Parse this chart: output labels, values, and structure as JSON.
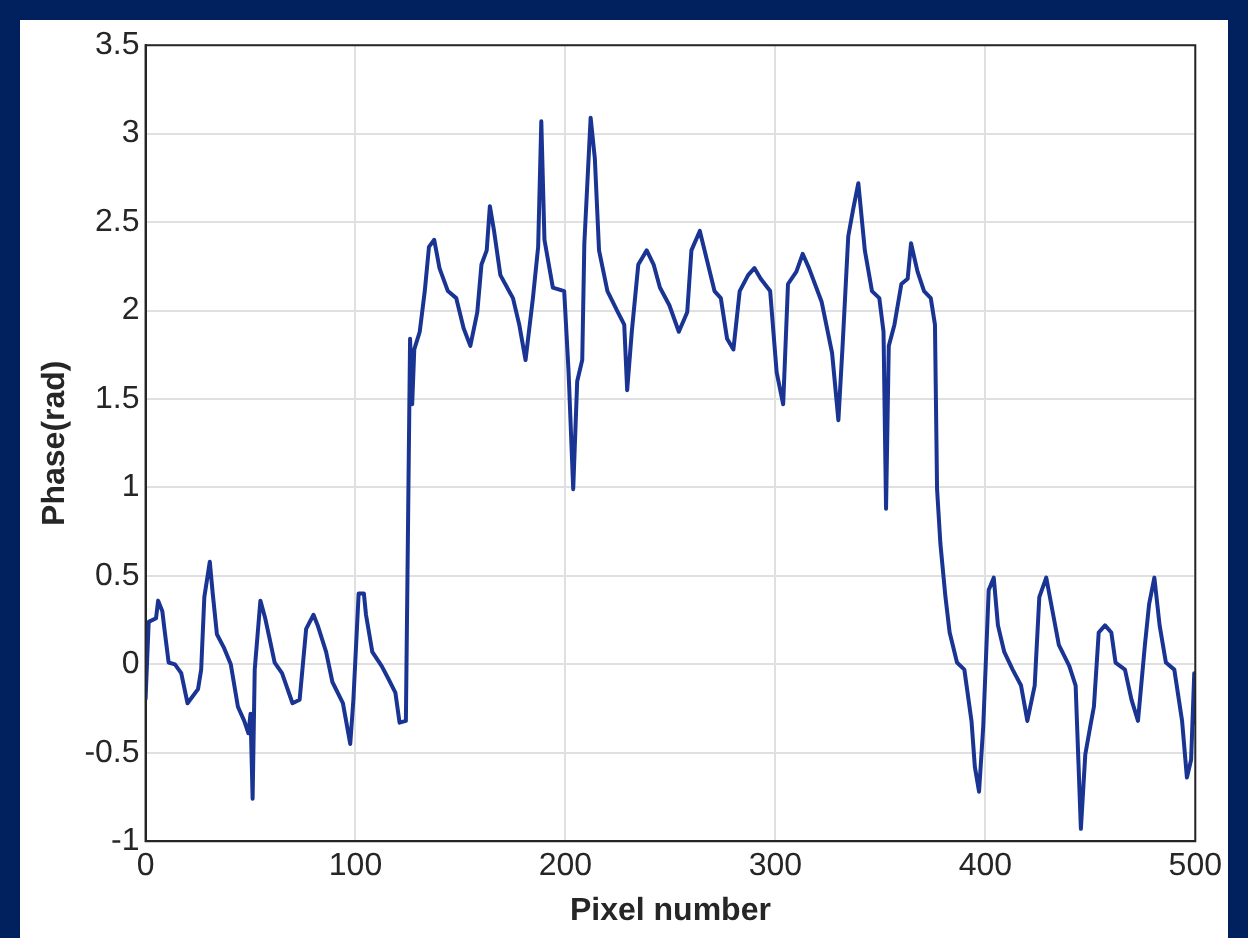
{
  "chart_data": {
    "type": "line",
    "xlabel": "Pixel number",
    "ylabel": "Phase(rad)",
    "xlim": [
      0,
      500
    ],
    "ylim": [
      -1,
      3.5
    ],
    "xticks": [
      0,
      100,
      200,
      300,
      400,
      500
    ],
    "yticks": [
      -1,
      -0.5,
      0,
      0.5,
      1,
      1.5,
      2,
      2.5,
      3,
      3.5
    ],
    "grid": true,
    "legend": false,
    "marker": "none",
    "line_style": "solid",
    "series": [
      {
        "color": "#1a3494",
        "x": [
          0,
          1.5,
          5,
          6,
          8,
          9,
          11,
          14,
          17,
          20,
          25,
          26.5,
          28,
          30.6,
          32,
          34,
          37.5,
          40.6,
          44,
          47,
          49,
          50,
          51,
          52,
          54.7,
          57,
          59,
          61.5,
          65,
          70,
          73.4,
          76.5,
          80,
          82,
          86,
          89,
          94,
          97.5,
          99,
          101.5,
          104,
          105,
          108,
          112.5,
          115.6,
          119,
          121,
          124,
          126,
          127,
          128,
          130.6,
          133,
          135,
          137.5,
          140,
          144,
          148,
          151.5,
          154.7,
          158,
          160,
          162.5,
          164,
          166,
          169,
          175,
          178,
          181,
          184.5,
          187,
          188.5,
          190,
          194,
          199.4,
          201.5,
          203.7,
          205.6,
          208,
          209,
          212,
          214,
          216,
          220,
          225,
          228,
          229.4,
          231.6,
          234.7,
          238.7,
          242,
          245,
          249.5,
          254,
          258,
          260,
          264,
          267.5,
          271,
          274,
          277,
          280,
          283,
          287,
          290,
          293,
          297.5,
          300.6,
          303.7,
          306,
          310,
          313,
          316,
          322,
          327,
          330,
          332,
          334.7,
          337,
          339.5,
          342.6,
          346,
          349.5,
          351.5,
          352.7,
          354,
          356.7,
          360,
          363,
          364.6,
          367.7,
          370.8,
          374,
          376,
          377,
          378.6,
          381,
          383,
          386.5,
          390,
          393.4,
          395,
          397,
          399,
          401.6,
          404,
          406,
          409,
          413,
          417,
          420,
          423.5,
          425.7,
          429,
          432,
          435,
          440,
          443,
          445.5,
          447.6,
          450,
          451.7,
          454,
          457,
          460,
          462,
          466.5,
          469.6,
          472.7,
          476,
          478,
          480.5,
          483,
          486,
          490,
          493.7,
          496,
          498,
          499.5,
          500
        ],
        "values": [
          -0.2,
          0.24,
          0.26,
          0.36,
          0.3,
          0.2,
          0.01,
          0,
          -0.05,
          -0.22,
          -0.14,
          -0.03,
          0.38,
          0.58,
          0.4,
          0.17,
          0.09,
          0,
          -0.24,
          -0.32,
          -0.39,
          -0.28,
          -0.76,
          -0.03,
          0.36,
          0.26,
          0.15,
          0.01,
          -0.05,
          -0.22,
          -0.2,
          0.2,
          0.28,
          0.22,
          0.07,
          -0.1,
          -0.22,
          -0.45,
          -0.2,
          0.4,
          0.4,
          0.28,
          0.07,
          -0.01,
          -0.08,
          -0.16,
          -0.33,
          -0.32,
          1.84,
          1.47,
          1.78,
          1.88,
          2.11,
          2.36,
          2.4,
          2.24,
          2.11,
          2.07,
          1.9,
          1.8,
          1.99,
          2.26,
          2.34,
          2.59,
          2.45,
          2.2,
          2.07,
          1.92,
          1.72,
          2.07,
          2.36,
          3.07,
          2.4,
          2.13,
          2.11,
          1.65,
          0.99,
          1.6,
          1.72,
          2.38,
          3.09,
          2.86,
          2.34,
          2.11,
          1.99,
          1.92,
          1.55,
          1.88,
          2.26,
          2.34,
          2.26,
          2.13,
          2.03,
          1.88,
          1.99,
          2.34,
          2.45,
          2.28,
          2.11,
          2.07,
          1.84,
          1.78,
          2.11,
          2.2,
          2.24,
          2.18,
          2.11,
          1.65,
          1.47,
          2.15,
          2.22,
          2.32,
          2.24,
          2.05,
          1.76,
          1.38,
          1.8,
          2.42,
          2.57,
          2.72,
          2.34,
          2.11,
          2.07,
          1.88,
          0.88,
          1.8,
          1.92,
          2.15,
          2.18,
          2.38,
          2.22,
          2.11,
          2.07,
          1.92,
          0.99,
          0.68,
          0.38,
          0.18,
          0.01,
          -0.03,
          -0.32,
          -0.58,
          -0.72,
          -0.35,
          0.42,
          0.49,
          0.22,
          0.07,
          -0.03,
          -0.12,
          -0.32,
          -0.12,
          0.38,
          0.49,
          0.3,
          0.11,
          -0.01,
          -0.12,
          -0.93,
          -0.51,
          -0.35,
          -0.24,
          0.18,
          0.22,
          0.18,
          0.01,
          -0.03,
          -0.2,
          -0.32,
          0.11,
          0.34,
          0.49,
          0.22,
          0.01,
          -0.03,
          -0.32,
          -0.64,
          -0.54,
          -0.05,
          -0.33
        ]
      }
    ]
  }
}
